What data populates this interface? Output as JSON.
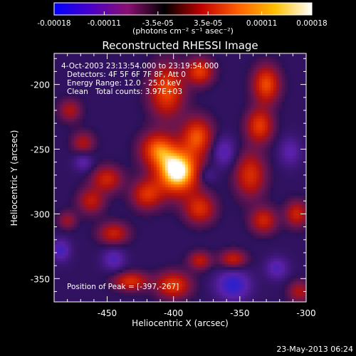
{
  "chart_data": {
    "type": "heatmap",
    "title": "Reconstructed RHESSI Image",
    "xlabel": "Heliocentric X (arcsec)",
    "ylabel": "Heliocentric Y (arcsec)",
    "xlim": [
      -490,
      -300
    ],
    "ylim": [
      -368,
      -176
    ],
    "xticks": [
      -450,
      -400,
      -350,
      -300
    ],
    "xtick_labels": [
      "-450",
      "-400",
      "-350",
      "-300"
    ],
    "yticks": [
      -350,
      -300,
      -250,
      -200
    ],
    "ytick_labels": [
      "-350",
      "-300",
      "-250",
      "-200"
    ],
    "colorbar": {
      "range": [
        -0.00018,
        0.00018
      ],
      "ticks": [
        -0.00018,
        -0.00011,
        -3.5e-05,
        3.5e-05,
        0.00011,
        0.00018
      ],
      "tick_labels": [
        "-0.00018",
        "-0.00011",
        "-3.5e-05",
        "3.5e-05",
        "0.00011",
        "0.00018"
      ],
      "units": "(photons cm⁻² s⁻¹ asec⁻²)",
      "colormap": [
        "#0000ff",
        "#4b00c8",
        "#8a1070",
        "#000000",
        "#c00000",
        "#ff6000",
        "#ffc000",
        "#ffffff"
      ]
    },
    "annotations": [
      "4-Oct-2003 23:13:54.000 to 23:19:54.000",
      "Detectors: 4F 5F 6F 7F 8F, Att 0",
      "Energy Range: 12.0 - 25.0 keV",
      "Clean",
      "Total counts: 3.97E+03"
    ],
    "peak_label": "Position of Peak = [-397,-267]",
    "peak": {
      "x": -397,
      "y": -267
    },
    "sources": [
      {
        "x": -397,
        "y": -267,
        "amp": 1.0,
        "sx": 11,
        "sy": 12
      },
      {
        "x": -412,
        "y": -250,
        "amp": 0.55,
        "sx": 9,
        "sy": 9
      },
      {
        "x": -382,
        "y": -240,
        "amp": 0.55,
        "sx": 8,
        "sy": 10
      },
      {
        "x": -420,
        "y": -285,
        "amp": 0.45,
        "sx": 8,
        "sy": 8
      },
      {
        "x": -380,
        "y": -296,
        "amp": 0.45,
        "sx": 8,
        "sy": 8
      },
      {
        "x": -405,
        "y": -205,
        "amp": 0.55,
        "sx": 9,
        "sy": 14
      },
      {
        "x": -380,
        "y": -190,
        "amp": 0.5,
        "sx": 7,
        "sy": 7
      },
      {
        "x": -330,
        "y": -200,
        "amp": 0.55,
        "sx": 7,
        "sy": 10
      },
      {
        "x": -335,
        "y": -232,
        "amp": 0.5,
        "sx": 7,
        "sy": 9
      },
      {
        "x": -342,
        "y": -270,
        "amp": 0.45,
        "sx": 8,
        "sy": 12
      },
      {
        "x": -332,
        "y": -305,
        "amp": 0.4,
        "sx": 7,
        "sy": 7
      },
      {
        "x": -450,
        "y": -273,
        "amp": 0.4,
        "sx": 8,
        "sy": 7
      },
      {
        "x": -462,
        "y": -290,
        "amp": 0.35,
        "sx": 7,
        "sy": 7
      },
      {
        "x": -468,
        "y": -245,
        "amp": 0.3,
        "sx": 6,
        "sy": 6
      },
      {
        "x": -445,
        "y": -315,
        "amp": 0.38,
        "sx": 8,
        "sy": 6
      },
      {
        "x": -432,
        "y": -352,
        "amp": 0.45,
        "sx": 9,
        "sy": 5
      },
      {
        "x": -400,
        "y": -355,
        "amp": 0.5,
        "sx": 9,
        "sy": 7
      },
      {
        "x": -380,
        "y": -336,
        "amp": 0.35,
        "sx": 6,
        "sy": 5
      },
      {
        "x": -355,
        "y": -335,
        "amp": 0.38,
        "sx": 7,
        "sy": 5
      },
      {
        "x": -307,
        "y": -300,
        "amp": 0.4,
        "sx": 6,
        "sy": 7
      },
      {
        "x": -305,
        "y": -360,
        "amp": 0.3,
        "sx": 6,
        "sy": 6
      },
      {
        "x": -480,
        "y": -305,
        "amp": 0.25,
        "sx": 5,
        "sy": 5
      },
      {
        "x": -478,
        "y": -220,
        "amp": 0.3,
        "sx": 6,
        "sy": 6
      },
      {
        "x": -355,
        "y": -355,
        "amp": -0.45,
        "sx": 9,
        "sy": 8
      },
      {
        "x": -362,
        "y": -252,
        "amp": -0.3,
        "sx": 6,
        "sy": 8
      },
      {
        "x": -445,
        "y": -335,
        "amp": -0.3,
        "sx": 6,
        "sy": 6
      },
      {
        "x": -485,
        "y": -328,
        "amp": -0.35,
        "sx": 5,
        "sy": 6
      },
      {
        "x": -468,
        "y": -260,
        "amp": -0.25,
        "sx": 5,
        "sy": 5
      },
      {
        "x": -375,
        "y": -270,
        "amp": -0.2,
        "sx": 5,
        "sy": 5
      },
      {
        "x": -312,
        "y": -252,
        "amp": -0.25,
        "sx": 6,
        "sy": 8
      },
      {
        "x": -322,
        "y": -342,
        "amp": -0.3,
        "sx": 6,
        "sy": 6
      }
    ]
  },
  "footer": {
    "date": "23-May-2013 06:24"
  }
}
